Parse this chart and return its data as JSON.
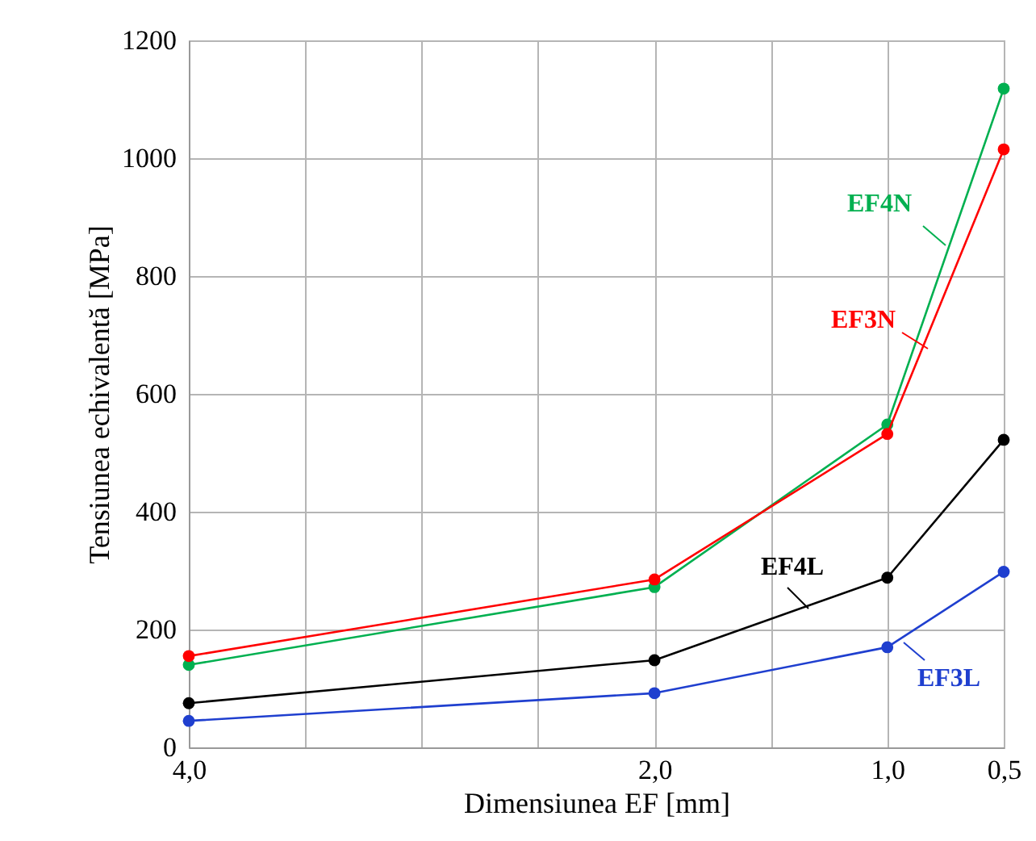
{
  "chart_data": {
    "type": "line",
    "xlabel": "Dimensiunea EF [mm]",
    "ylabel": "Tensiunea echivalentă [MPa]",
    "x": [
      4,
      2,
      1,
      0.5
    ],
    "series": [
      {
        "name": "EF4N",
        "color": "#00b050",
        "values": [
          140,
          272,
          548,
          1118
        ]
      },
      {
        "name": "EF3N",
        "color": "#ff0000",
        "values": [
          155,
          285,
          532,
          1015
        ]
      },
      {
        "name": "EF4L",
        "color": "#000000",
        "values": [
          75,
          148,
          288,
          522
        ]
      },
      {
        "name": "EF3L",
        "color": "#1f3fcf",
        "values": [
          45,
          92,
          170,
          298
        ]
      }
    ],
    "xlim": [
      4,
      0.5
    ],
    "xticks": [
      {
        "value": 4,
        "label": "4,0"
      },
      {
        "value": 3.5,
        "label": null
      },
      {
        "value": 3,
        "label": null
      },
      {
        "value": 2.5,
        "label": null
      },
      {
        "value": 2,
        "label": "2,0"
      },
      {
        "value": 1.5,
        "label": null
      },
      {
        "value": 1,
        "label": "1,0"
      },
      {
        "value": 0.5,
        "label": "0,5"
      }
    ],
    "ylim": [
      0,
      1200
    ],
    "yticks": [
      0,
      200,
      400,
      600,
      800,
      1000,
      1200
    ],
    "grid": true,
    "marker": "circle"
  }
}
